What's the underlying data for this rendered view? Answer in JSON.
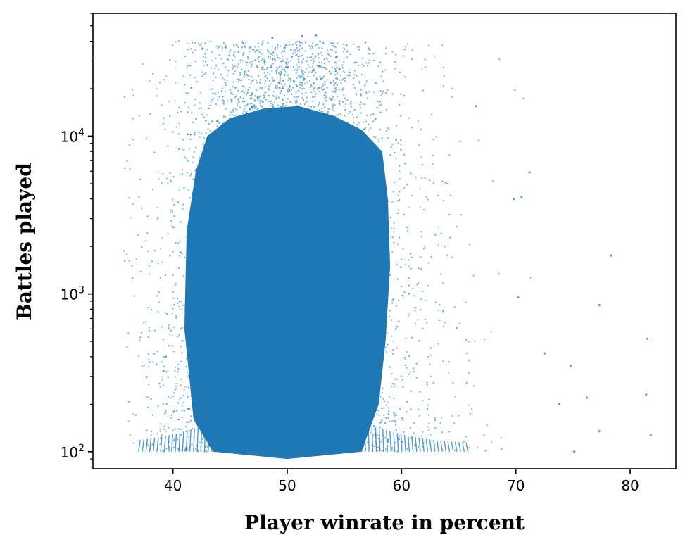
{
  "chart_data": {
    "type": "scatter",
    "title": "",
    "xlabel": "Player winrate in percent",
    "ylabel": "Battles played",
    "xlim": [
      33,
      84
    ],
    "ylim": [
      78,
      60000
    ],
    "yscale": "log",
    "grid": false,
    "marker_color": "#1f77b4",
    "x_ticks": [
      40,
      50,
      60,
      70,
      80
    ],
    "x_tick_labels": [
      "40",
      "50",
      "60",
      "70",
      "80"
    ],
    "y_ticks": [
      100,
      1000,
      10000
    ],
    "y_tick_labels": [
      {
        "base": "10",
        "exp": "2"
      },
      {
        "base": "10",
        "exp": "3"
      },
      {
        "base": "10",
        "exp": "4"
      }
    ],
    "point_cloud": {
      "description_of_density": "dense core",
      "core_x_range": [
        43,
        58
      ],
      "core_y_range": [
        150,
        15000
      ],
      "overall_x_range": [
        35.5,
        82
      ],
      "overall_y_range": [
        100,
        45000
      ]
    },
    "outliers": [
      {
        "x": 81.5,
        "y": 520
      },
      {
        "x": 81.4,
        "y": 230
      },
      {
        "x": 81.8,
        "y": 128
      },
      {
        "x": 78.3,
        "y": 1750
      },
      {
        "x": 77.3,
        "y": 850
      },
      {
        "x": 77.3,
        "y": 135
      },
      {
        "x": 75.1,
        "y": 100
      },
      {
        "x": 74.8,
        "y": 350
      },
      {
        "x": 71.2,
        "y": 5900
      },
      {
        "x": 70.5,
        "y": 4100
      },
      {
        "x": 69.8,
        "y": 4000
      },
      {
        "x": 70.2,
        "y": 950
      },
      {
        "x": 66.5,
        "y": 15500
      },
      {
        "x": 72.5,
        "y": 420
      },
      {
        "x": 76.2,
        "y": 220
      },
      {
        "x": 73.8,
        "y": 200
      },
      {
        "x": 51.3,
        "y": 43000
      },
      {
        "x": 52.5,
        "y": 43500
      },
      {
        "x": 48.7,
        "y": 42000
      },
      {
        "x": 44.6,
        "y": 36500
      },
      {
        "x": 42.6,
        "y": 36000
      },
      {
        "x": 57.2,
        "y": 35500
      }
    ]
  }
}
